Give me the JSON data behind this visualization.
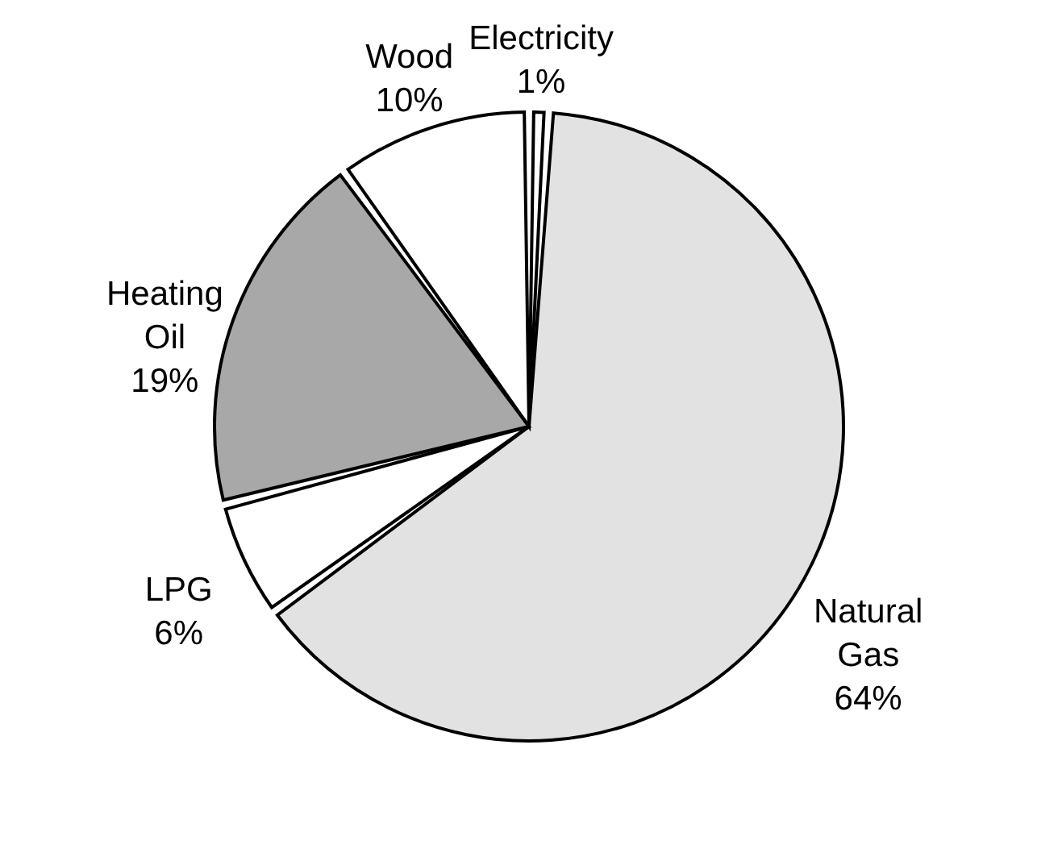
{
  "chart_data": {
    "type": "pie",
    "categories": [
      "Electricity",
      "Natural Gas",
      "LPG",
      "Heating Oil",
      "Wood"
    ],
    "values": [
      1,
      64,
      6,
      19,
      10
    ],
    "colors": [
      "#ffffff",
      "#e2e2e2",
      "#ffffff",
      "#a8a8a8",
      "#ffffff"
    ],
    "value_labels": [
      "1%",
      "64%",
      "6%",
      "19%",
      "10%"
    ],
    "legend": false
  }
}
